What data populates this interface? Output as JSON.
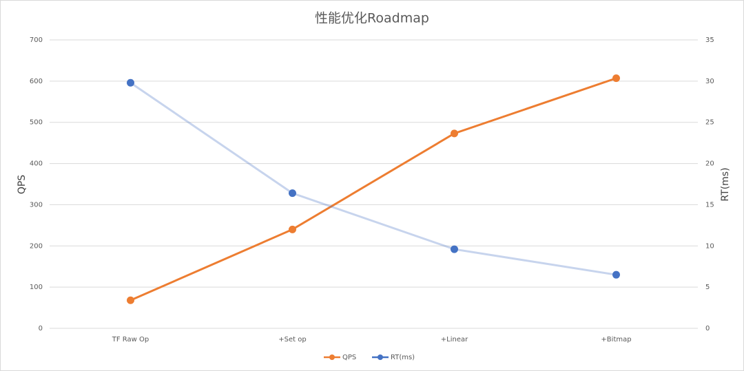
{
  "chart_data": {
    "type": "line",
    "title": "性能优化Roadmap",
    "categories": [
      "TF Raw Op",
      "+Set op",
      "+Linear",
      "+Bitmap"
    ],
    "series": [
      {
        "name": "QPS",
        "color": "#ed7d31",
        "values": [
          68,
          240,
          473,
          607
        ]
      },
      {
        "name": "RT(ms)",
        "color": "#4472c4",
        "values": [
          29.8,
          16.4,
          9.6,
          6.5
        ],
        "axis": "y2"
      }
    ],
    "ylabel": "QPS",
    "y2label": "RT(ms)",
    "ylim": [
      0,
      700
    ],
    "yticks": [
      0,
      100,
      200,
      300,
      400,
      500,
      600,
      700
    ],
    "y2lim": [
      0,
      35
    ],
    "y2ticks": [
      0,
      5,
      10,
      15,
      20,
      25,
      30,
      35
    ],
    "grid": true,
    "legend": "bottom"
  }
}
